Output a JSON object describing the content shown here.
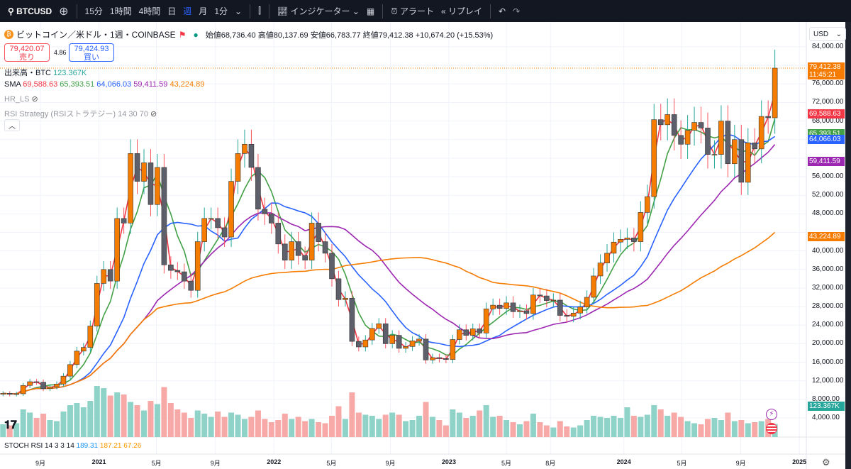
{
  "toolbar": {
    "symbol": "BTCUSD",
    "intervals": [
      "15分",
      "1時間",
      "4時間",
      "日",
      "週",
      "月",
      "1分"
    ],
    "active_interval": "週",
    "indicators": "インジケーター",
    "alert": "アラート",
    "replay": "リプレイ"
  },
  "legend": {
    "title": "ビットコイン／米ドル・1週・COINBASE",
    "open_label": "始値",
    "open": "68,736.40",
    "high_label": "高値",
    "high": "80,137.69",
    "low_label": "安値",
    "low": "66,783.77",
    "close_label": "終値",
    "close": "79,412.38",
    "change": "+10,674.20 (+15.53%)",
    "sell_price": "79,420.07",
    "sell_label": "売り",
    "spread": "4.86",
    "buy_price": "79,424.93",
    "buy_label": "買い",
    "volume_label": "出来高・BTC",
    "volume_value": "123.367K",
    "sma_label": "SMA",
    "sma_values": [
      "69,588.63",
      "65,393.51",
      "64,066.03",
      "59,411.59",
      "43,224.89"
    ],
    "hr_ls": "HR_LS",
    "rsi_strategy": "RSI Strategy (RSIストラテジー) 14 30 70",
    "stoch_label": "STOCH RSI 14 3 3 14",
    "stoch_values": [
      "189.31",
      "187.21",
      "67.26"
    ]
  },
  "colors": {
    "up_body": "#f57c00",
    "down_body": "#5d606b",
    "up_wick": "#26a69a",
    "down_wick": "#f7525f",
    "vol_up": "#8fd3c8",
    "vol_down": "#f7a9a7",
    "sma": [
      "#f23645",
      "#43a047",
      "#2962ff",
      "#9c27b0",
      "#f57c00"
    ]
  },
  "price_axis": {
    "currency": "USD",
    "ticks": [
      "84,000.00",
      "76,000.00",
      "72,000.00",
      "68,000.00",
      "56,000.00",
      "52,000.00",
      "48,000.00",
      "40,000.00",
      "36,000.00",
      "32,000.00",
      "28,000.00",
      "24,000.00",
      "20,000.00",
      "16,000.00",
      "12,000.00",
      "8,000.00",
      "4,000.00"
    ],
    "tags": {
      "price": "79,412.38",
      "countdown": "11:45:21",
      "volume": "123.367K"
    }
  },
  "time_axis": [
    {
      "label": "9月",
      "date": "2020-09-01"
    },
    {
      "label": "2021",
      "date": "2021-01-01",
      "bold": true
    },
    {
      "label": "5月",
      "date": "2021-05-01"
    },
    {
      "label": "9月",
      "date": "2021-09-01"
    },
    {
      "label": "2022",
      "date": "2022-01-01",
      "bold": true
    },
    {
      "label": "5月",
      "date": "2022-05-01"
    },
    {
      "label": "9月",
      "date": "2022-09-01"
    },
    {
      "label": "2023",
      "date": "2023-01-01",
      "bold": true
    },
    {
      "label": "5月",
      "date": "2023-05-01"
    },
    {
      "label": "8月",
      "date": "2023-08-01"
    },
    {
      "label": "2024",
      "date": "2024-01-01",
      "bold": true
    },
    {
      "label": "5月",
      "date": "2024-05-01"
    },
    {
      "label": "9月",
      "date": "2024-09-01"
    },
    {
      "label": "2025",
      "date": "2025-01-01",
      "bold": true
    }
  ],
  "chart_data": {
    "type": "candlestick",
    "y_range": [
      0,
      84000
    ],
    "columns": [
      "date",
      "close",
      "volume_k"
    ],
    "candles": [
      [
        "2020-06-15",
        9300,
        120
      ],
      [
        "2020-06-29",
        9100,
        110
      ],
      [
        "2020-07-13",
        9200,
        130
      ],
      [
        "2020-07-27",
        11000,
        260
      ],
      [
        "2020-08-10",
        11800,
        230
      ],
      [
        "2020-08-24",
        11700,
        180
      ],
      [
        "2020-09-07",
        10300,
        220
      ],
      [
        "2020-09-21",
        10700,
        160
      ],
      [
        "2020-10-05",
        11300,
        150
      ],
      [
        "2020-10-19",
        13000,
        240
      ],
      [
        "2020-11-02",
        15500,
        300
      ],
      [
        "2020-11-16",
        18400,
        320
      ],
      [
        "2020-11-30",
        19200,
        280
      ],
      [
        "2020-12-14",
        23800,
        340
      ],
      [
        "2020-12-28",
        33000,
        480
      ],
      [
        "2021-01-11",
        36000,
        460
      ],
      [
        "2021-01-25",
        33500,
        390
      ],
      [
        "2021-02-08",
        47000,
        420
      ],
      [
        "2021-02-22",
        46000,
        400
      ],
      [
        "2021-03-08",
        61000,
        330
      ],
      [
        "2021-03-22",
        55000,
        300
      ],
      [
        "2021-04-05",
        59000,
        250
      ],
      [
        "2021-04-19",
        50000,
        340
      ],
      [
        "2021-05-03",
        58000,
        310
      ],
      [
        "2021-05-17",
        37000,
        470
      ],
      [
        "2021-05-31",
        35800,
        320
      ],
      [
        "2021-06-14",
        35500,
        260
      ],
      [
        "2021-06-28",
        33500,
        230
      ],
      [
        "2021-07-12",
        31500,
        180
      ],
      [
        "2021-07-26",
        42000,
        250
      ],
      [
        "2021-08-09",
        47000,
        220
      ],
      [
        "2021-08-23",
        47000,
        190
      ],
      [
        "2021-09-06",
        45000,
        240
      ],
      [
        "2021-09-20",
        43000,
        190
      ],
      [
        "2021-10-04",
        55000,
        230
      ],
      [
        "2021-10-18",
        61000,
        210
      ],
      [
        "2021-11-01",
        63000,
        170
      ],
      [
        "2021-11-15",
        58000,
        190
      ],
      [
        "2021-11-29",
        49000,
        250
      ],
      [
        "2021-12-13",
        48000,
        170
      ],
      [
        "2021-12-27",
        46000,
        140
      ],
      [
        "2022-01-10",
        41500,
        160
      ],
      [
        "2022-01-24",
        38000,
        220
      ],
      [
        "2022-02-07",
        42000,
        170
      ],
      [
        "2022-02-21",
        39000,
        190
      ],
      [
        "2022-03-07",
        38000,
        150
      ],
      [
        "2022-03-21",
        46000,
        170
      ],
      [
        "2022-04-04",
        42000,
        140
      ],
      [
        "2022-04-18",
        39500,
        130
      ],
      [
        "2022-05-02",
        34000,
        200
      ],
      [
        "2022-05-16",
        29500,
        290
      ],
      [
        "2022-05-30",
        29800,
        170
      ],
      [
        "2022-06-13",
        20500,
        420
      ],
      [
        "2022-06-27",
        19300,
        230
      ],
      [
        "2022-07-11",
        20800,
        210
      ],
      [
        "2022-07-25",
        23300,
        200
      ],
      [
        "2022-08-08",
        24300,
        170
      ],
      [
        "2022-08-22",
        20000,
        210
      ],
      [
        "2022-09-05",
        21800,
        230
      ],
      [
        "2022-09-19",
        19000,
        210
      ],
      [
        "2022-10-03",
        19400,
        150
      ],
      [
        "2022-10-17",
        20600,
        160
      ],
      [
        "2022-10-31",
        21000,
        200
      ],
      [
        "2022-11-14",
        16500,
        330
      ],
      [
        "2022-11-28",
        17000,
        190
      ],
      [
        "2022-12-12",
        16800,
        160
      ],
      [
        "2022-12-26",
        16600,
        110
      ],
      [
        "2023-01-09",
        20900,
        260
      ],
      [
        "2023-01-23",
        23000,
        230
      ],
      [
        "2023-02-06",
        21800,
        180
      ],
      [
        "2023-02-20",
        23200,
        200
      ],
      [
        "2023-03-06",
        22300,
        250
      ],
      [
        "2023-03-20",
        27500,
        300
      ],
      [
        "2023-04-03",
        28300,
        190
      ],
      [
        "2023-04-17",
        27600,
        200
      ],
      [
        "2023-05-01",
        28800,
        160
      ],
      [
        "2023-05-15",
        26900,
        140
      ],
      [
        "2023-05-29",
        27100,
        120
      ],
      [
        "2023-06-12",
        26500,
        150
      ],
      [
        "2023-06-26",
        30500,
        220
      ],
      [
        "2023-07-10",
        30300,
        140
      ],
      [
        "2023-07-24",
        29300,
        110
      ],
      [
        "2023-08-07",
        29400,
        90
      ],
      [
        "2023-08-21",
        26100,
        150
      ],
      [
        "2023-09-04",
        25900,
        100
      ],
      [
        "2023-09-18",
        26600,
        90
      ],
      [
        "2023-10-02",
        27900,
        110
      ],
      [
        "2023-10-16",
        30000,
        160
      ],
      [
        "2023-10-30",
        34600,
        200
      ],
      [
        "2023-11-13",
        37400,
        190
      ],
      [
        "2023-11-27",
        39500,
        180
      ],
      [
        "2023-12-11",
        41900,
        200
      ],
      [
        "2023-12-25",
        42500,
        180
      ],
      [
        "2024-01-08",
        42800,
        280
      ],
      [
        "2024-01-22",
        42000,
        200
      ],
      [
        "2024-02-05",
        48300,
        190
      ],
      [
        "2024-02-19",
        51700,
        210
      ],
      [
        "2024-03-04",
        68300,
        300
      ],
      [
        "2024-03-18",
        67200,
        260
      ],
      [
        "2024-04-01",
        69400,
        200
      ],
      [
        "2024-04-15",
        64900,
        230
      ],
      [
        "2024-04-29",
        63000,
        190
      ],
      [
        "2024-05-13",
        66000,
        150
      ],
      [
        "2024-05-27",
        67700,
        130
      ],
      [
        "2024-06-10",
        66500,
        120
      ],
      [
        "2024-06-24",
        60800,
        170
      ],
      [
        "2024-07-08",
        60800,
        180
      ],
      [
        "2024-07-22",
        68000,
        160
      ],
      [
        "2024-08-05",
        58800,
        230
      ],
      [
        "2024-08-19",
        64000,
        150
      ],
      [
        "2024-09-02",
        54800,
        160
      ],
      [
        "2024-09-16",
        63300,
        130
      ],
      [
        "2024-09-30",
        62000,
        140
      ],
      [
        "2024-10-14",
        69000,
        150
      ],
      [
        "2024-10-28",
        68700,
        170
      ],
      [
        "2024-11-11",
        79412.38,
        123.367
      ]
    ]
  }
}
